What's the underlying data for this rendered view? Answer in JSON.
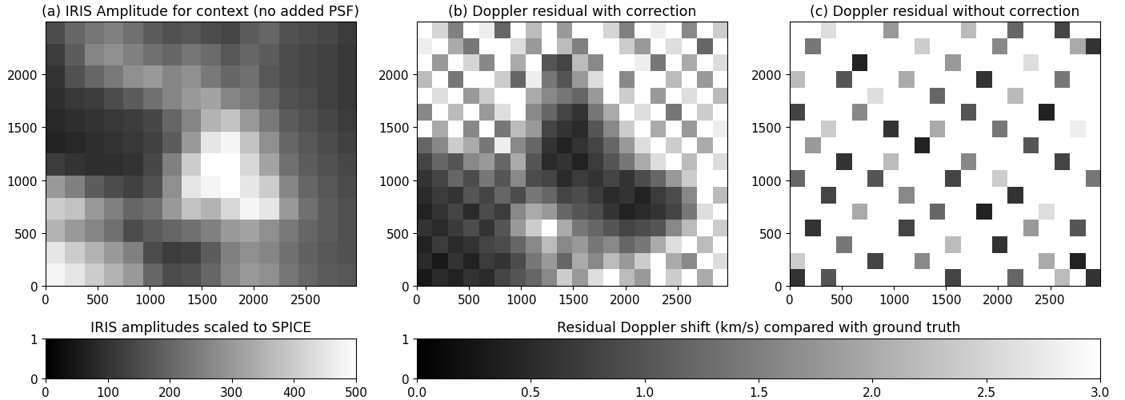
{
  "chart_data": [
    {
      "type": "heatmap",
      "title": "(a) IRIS Amplitude for context (no added PSF)",
      "color": "gray",
      "xlim": [
        0,
        2980
      ],
      "ylim": [
        0,
        2500
      ],
      "xticks": [
        0,
        500,
        1000,
        1500,
        2000,
        2500
      ],
      "yticks": [
        0,
        500,
        1000,
        1500,
        2000
      ],
      "cells": [
        [
          150,
          200,
          230,
          250,
          220,
          180,
          160,
          170,
          150,
          140,
          180,
          200,
          160,
          150,
          140,
          120
        ],
        [
          120,
          180,
          260,
          280,
          250,
          220,
          200,
          230,
          210,
          170,
          200,
          180,
          150,
          140,
          130,
          110
        ],
        [
          100,
          160,
          200,
          240,
          280,
          300,
          260,
          280,
          240,
          200,
          220,
          170,
          150,
          140,
          130,
          110
        ],
        [
          90,
          110,
          120,
          150,
          180,
          220,
          260,
          300,
          320,
          260,
          240,
          200,
          160,
          150,
          130,
          110
        ],
        [
          80,
          90,
          100,
          110,
          120,
          140,
          200,
          260,
          350,
          380,
          300,
          240,
          180,
          160,
          140,
          120
        ],
        [
          70,
          80,
          90,
          100,
          110,
          130,
          180,
          300,
          450,
          480,
          380,
          280,
          200,
          170,
          150,
          130
        ],
        [
          120,
          100,
          90,
          90,
          100,
          140,
          250,
          400,
          500,
          500,
          420,
          320,
          220,
          180,
          160,
          140
        ],
        [
          300,
          250,
          180,
          150,
          130,
          160,
          280,
          450,
          480,
          500,
          450,
          400,
          260,
          200,
          170,
          150
        ],
        [
          400,
          380,
          300,
          250,
          200,
          220,
          300,
          380,
          350,
          420,
          480,
          450,
          300,
          220,
          180,
          160
        ],
        [
          350,
          300,
          260,
          220,
          150,
          180,
          200,
          220,
          250,
          300,
          320,
          280,
          240,
          200,
          180,
          160
        ],
        [
          450,
          400,
          350,
          300,
          250,
          150,
          120,
          130,
          180,
          250,
          280,
          260,
          220,
          190,
          170,
          160
        ],
        [
          480,
          450,
          400,
          350,
          300,
          200,
          150,
          160,
          200,
          260,
          300,
          280,
          230,
          200,
          180,
          170
        ]
      ],
      "colorbar": {
        "title": "IRIS amplitudes scaled to SPICE",
        "range": [
          0,
          500
        ],
        "ticks": [
          0,
          100,
          200,
          300,
          400,
          500
        ],
        "yticks": [
          0,
          1
        ]
      }
    },
    {
      "type": "heatmap",
      "title": "(b) Doppler residual with correction",
      "color": "gray",
      "xlim": [
        0,
        2980
      ],
      "ylim": [
        0,
        2500
      ],
      "xticks": [
        0,
        500,
        1000,
        1500,
        2000,
        2500
      ],
      "yticks": [
        0,
        500,
        1000,
        1500,
        2000
      ],
      "cells": [
        [
          3,
          2.5,
          1.5,
          3,
          2.8,
          1.2,
          3,
          2.2,
          3,
          1.8,
          3,
          3,
          2.5,
          1.5,
          3,
          2.8,
          3,
          1.6,
          3,
          2.4
        ],
        [
          2.8,
          3,
          2.0,
          1.4,
          3,
          3,
          2.6,
          1.8,
          3,
          2.2,
          1.5,
          3,
          3,
          2.4,
          1.8,
          3,
          2.6,
          3,
          1.2,
          3
        ],
        [
          3,
          1.8,
          3,
          2.5,
          1.6,
          3,
          2.0,
          3,
          1.0,
          0.8,
          2.2,
          1.6,
          3,
          3,
          2.8,
          1.4,
          3,
          2.0,
          3,
          2.6
        ],
        [
          2.2,
          3,
          1.4,
          3,
          3,
          2.4,
          1.2,
          2.8,
          1.4,
          1.0,
          1.8,
          2.6,
          3,
          1.6,
          3,
          3,
          2.2,
          3,
          1.8,
          3
        ],
        [
          3,
          2.6,
          3,
          1.8,
          2.4,
          3,
          3,
          2.0,
          1.6,
          1.4,
          1.2,
          1.8,
          3,
          2.4,
          3,
          1.8,
          3,
          2.6,
          3,
          2.2
        ],
        [
          1.6,
          3,
          2.2,
          3,
          1.8,
          2.6,
          3,
          1.6,
          1.2,
          0.8,
          0.6,
          1.4,
          2.0,
          3,
          2.6,
          3,
          1.4,
          3,
          2.4,
          3
        ],
        [
          3,
          2.0,
          3,
          1.6,
          3,
          1.4,
          2.2,
          1.8,
          0.8,
          0.6,
          0.5,
          1.0,
          1.6,
          2.4,
          3,
          2.0,
          3,
          1.8,
          3,
          2.8
        ],
        [
          1.2,
          1.6,
          2.4,
          2.0,
          1.4,
          2.8,
          1.6,
          1.2,
          0.6,
          0.4,
          0.6,
          0.8,
          1.2,
          1.8,
          2.6,
          3,
          2.4,
          3,
          2.0,
          3
        ],
        [
          0.8,
          1.2,
          1.0,
          1.6,
          1.8,
          1.2,
          2.0,
          1.0,
          0.5,
          0.6,
          0.4,
          0.7,
          1.0,
          1.4,
          2.0,
          2.6,
          3,
          2.2,
          3,
          2.6
        ],
        [
          0.6,
          0.8,
          1.2,
          0.9,
          1.4,
          1.0,
          1.6,
          0.9,
          0.8,
          0.5,
          0.7,
          0.6,
          0.8,
          0.6,
          0.9,
          1.2,
          1.8,
          2.4,
          3,
          3
        ],
        [
          0.5,
          0.7,
          0.6,
          1.0,
          0.8,
          1.2,
          0.9,
          1.4,
          1.2,
          0.8,
          0.9,
          0.7,
          0.5,
          0.6,
          0.4,
          0.7,
          0.9,
          1.6,
          3,
          2.2
        ],
        [
          0.4,
          0.6,
          0.8,
          0.5,
          0.9,
          0.7,
          1.6,
          2.0,
          1.8,
          1.2,
          1.0,
          0.9,
          0.6,
          0.4,
          0.5,
          0.6,
          0.8,
          1.4,
          2.6,
          3
        ],
        [
          0.6,
          0.5,
          0.7,
          0.9,
          0.6,
          1.0,
          1.8,
          2.4,
          3,
          2.0,
          1.4,
          1.2,
          1.0,
          0.8,
          0.9,
          1.0,
          1.6,
          2.2,
          3,
          2.4
        ],
        [
          0.4,
          0.7,
          0.5,
          0.6,
          0.8,
          0.9,
          1.2,
          1.6,
          2.2,
          1.6,
          1.8,
          1.4,
          1.6,
          1.2,
          1.4,
          2.0,
          2.6,
          3,
          2.2,
          3
        ],
        [
          0.5,
          0.3,
          0.6,
          0.4,
          0.7,
          0.6,
          0.9,
          1.4,
          1.8,
          1.2,
          2.0,
          1.6,
          2.2,
          1.8,
          2.4,
          3,
          2.0,
          1.6,
          3,
          2.6
        ],
        [
          0.3,
          0.5,
          0.4,
          0.6,
          0.5,
          0.8,
          1.0,
          1.2,
          1.6,
          2.4,
          1.8,
          2.6,
          3,
          2.2,
          1.8,
          3,
          2.4,
          3,
          2.0,
          3
        ]
      ],
      "colorbar": {
        "title": "Residual Doppler shift (km/s) compared with ground truth",
        "range": [
          0.0,
          3.0
        ],
        "ticks": [
          0.0,
          0.5,
          1.0,
          1.5,
          2.0,
          2.5,
          3.0
        ],
        "yticks": [
          0,
          1
        ]
      }
    },
    {
      "type": "heatmap",
      "title": "(c) Doppler residual without correction",
      "color": "gray",
      "xlim": [
        0,
        2980
      ],
      "ylim": [
        0,
        2500
      ],
      "xticks": [
        0,
        500,
        1000,
        1500,
        2000,
        2500
      ],
      "yticks": [
        0,
        500,
        1000,
        1500,
        2000
      ],
      "cells": [
        [
          3,
          3,
          2.6,
          3,
          3,
          3,
          1.8,
          3,
          3,
          3,
          3,
          2.2,
          3,
          3,
          1.2,
          3,
          3,
          0.8,
          3,
          3
        ],
        [
          3,
          1.4,
          3,
          3,
          3,
          3,
          3,
          3,
          2.4,
          3,
          3,
          3,
          3,
          1.6,
          3,
          3,
          3,
          3,
          2.0,
          0.6
        ],
        [
          3,
          3,
          3,
          3,
          0.4,
          3,
          3,
          3,
          3,
          3,
          1.8,
          3,
          3,
          3,
          3,
          2.6,
          3,
          3,
          3,
          3
        ],
        [
          2.2,
          3,
          3,
          1.0,
          3,
          3,
          3,
          2.0,
          3,
          3,
          3,
          3,
          0.6,
          3,
          3,
          3,
          3,
          1.4,
          3,
          3
        ],
        [
          3,
          3,
          3,
          3,
          3,
          2.6,
          3,
          3,
          3,
          1.2,
          3,
          3,
          3,
          3,
          2.2,
          3,
          3,
          3,
          3,
          3
        ],
        [
          0.8,
          3,
          3,
          3,
          1.6,
          3,
          3,
          3,
          3,
          3,
          3,
          1.0,
          3,
          3,
          3,
          3,
          0.4,
          3,
          3,
          3
        ],
        [
          3,
          3,
          2.4,
          3,
          3,
          3,
          0.6,
          3,
          3,
          2.0,
          3,
          3,
          3,
          1.4,
          3,
          3,
          3,
          3,
          2.8,
          3
        ],
        [
          3,
          1.8,
          3,
          3,
          3,
          3,
          3,
          3,
          0.4,
          3,
          3,
          3,
          3,
          3,
          3,
          1.0,
          3,
          3,
          3,
          3
        ],
        [
          3,
          3,
          3,
          0.6,
          3,
          3,
          2.2,
          3,
          3,
          3,
          3,
          1.6,
          3,
          3,
          3,
          3,
          3,
          0.8,
          3,
          3
        ],
        [
          1.2,
          3,
          3,
          3,
          3,
          1.0,
          3,
          3,
          3,
          3,
          0.8,
          3,
          3,
          2.4,
          3,
          3,
          3,
          3,
          3,
          1.4
        ],
        [
          3,
          3,
          0.8,
          3,
          3,
          3,
          3,
          1.6,
          3,
          3,
          3,
          3,
          3,
          3,
          0.6,
          3,
          3,
          3,
          3,
          3
        ],
        [
          3,
          3,
          3,
          3,
          2.0,
          3,
          3,
          3,
          3,
          1.2,
          3,
          3,
          0.4,
          3,
          3,
          3,
          2.6,
          3,
          3,
          3
        ],
        [
          3,
          0.6,
          3,
          3,
          3,
          3,
          3,
          0.8,
          3,
          3,
          3,
          3,
          3,
          3,
          3,
          1.8,
          3,
          3,
          1.0,
          3
        ],
        [
          3,
          3,
          3,
          1.4,
          3,
          3,
          3,
          3,
          3,
          3,
          2.2,
          3,
          3,
          0.6,
          3,
          3,
          3,
          3,
          3,
          3
        ],
        [
          2.4,
          3,
          3,
          3,
          3,
          0.8,
          3,
          3,
          1.6,
          3,
          3,
          3,
          3,
          3,
          3,
          3,
          2.0,
          3,
          0.4,
          3
        ],
        [
          0.6,
          3,
          1.0,
          3,
          3,
          3,
          3,
          3,
          3,
          3,
          0.8,
          3,
          3,
          3,
          1.2,
          3,
          3,
          2.2,
          3,
          0.6
        ]
      ]
    }
  ]
}
